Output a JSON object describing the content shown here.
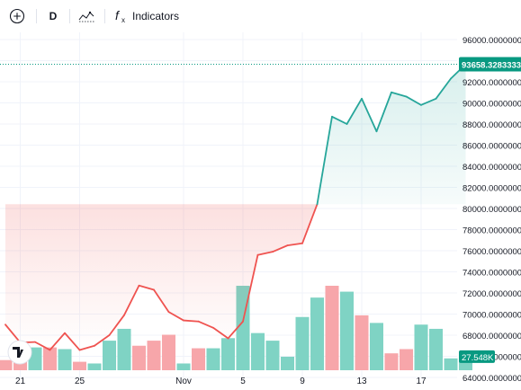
{
  "toolbar": {
    "add_icon": "plus-circle-icon",
    "interval_label": "D",
    "chart_style_icon": "line-style-icon",
    "indicators_icon": "fx-icon",
    "indicators_label": "Indicators"
  },
  "colors": {
    "up_line": "#26a69a",
    "down_line": "#ef5350",
    "up_fill": "#e8f5f1",
    "down_fill": "#fde4e4",
    "vol_up": "#7fd3c4",
    "vol_down": "#f7a6aa",
    "price_tag_bg": "#089981"
  },
  "chart_data": {
    "type": "area",
    "baseline": 80400,
    "ylim": [
      64000,
      96000
    ],
    "y_ticks": [
      "96000.00000000",
      "94000.00000000",
      "92000.00000000",
      "90000.00000000",
      "88000.00000000",
      "86000.00000000",
      "84000.00000000",
      "82000.00000000",
      "80000.00000000",
      "78000.00000000",
      "76000.00000000",
      "74000.00000000",
      "72000.00000000",
      "70000.00000000",
      "68000.00000000",
      "66000.00000000",
      "64000.00000000"
    ],
    "x_ticks": [
      "21",
      "25",
      "Nov",
      "5",
      "9",
      "13",
      "17"
    ],
    "dates": [
      "Oct 20",
      "Oct 21",
      "Oct 22",
      "Oct 23",
      "Oct 24",
      "Oct 25",
      "Oct 26",
      "Oct 27",
      "Oct 28",
      "Oct 29",
      "Oct 30",
      "Oct 31",
      "Nov 1",
      "Nov 2",
      "Nov 3",
      "Nov 4",
      "Nov 5",
      "Nov 6",
      "Nov 7",
      "Nov 8",
      "Nov 9",
      "Nov 10",
      "Nov 11",
      "Nov 12",
      "Nov 13",
      "Nov 14",
      "Nov 15",
      "Nov 16",
      "Nov 17",
      "Nov 18",
      "Nov 19",
      "Nov 20"
    ],
    "price": [
      69000,
      67300,
      67350,
      66600,
      68200,
      66600,
      67000,
      68000,
      69900,
      72700,
      72300,
      70200,
      69400,
      69300,
      68700,
      67700,
      69300,
      75600,
      75900,
      76500,
      76700,
      80400,
      88700,
      88000,
      90400,
      87300,
      91000,
      90600,
      89800,
      90400,
      92300,
      93658
    ],
    "volume_ratio": [
      0.12,
      0.22,
      0.27,
      0.27,
      0.25,
      0.1,
      0.08,
      0.35,
      0.49,
      0.29,
      0.35,
      0.42,
      0.08,
      0.26,
      0.26,
      0.38,
      1.0,
      0.44,
      0.35,
      0.16,
      0.63,
      0.86,
      1.0,
      0.93,
      0.65,
      0.56,
      0.2,
      0.25,
      0.54,
      0.49,
      0.14,
      0.14
    ],
    "volume_dir": [
      "down",
      "down",
      "up",
      "down",
      "up",
      "down",
      "up",
      "up",
      "up",
      "down",
      "down",
      "down",
      "up",
      "down",
      "up",
      "up",
      "up",
      "up",
      "up",
      "up",
      "up",
      "up",
      "down",
      "up",
      "down",
      "up",
      "down",
      "down",
      "up",
      "up",
      "up",
      "up"
    ],
    "last_price_label": "93658.32833333",
    "volume_label": "27.548K"
  }
}
